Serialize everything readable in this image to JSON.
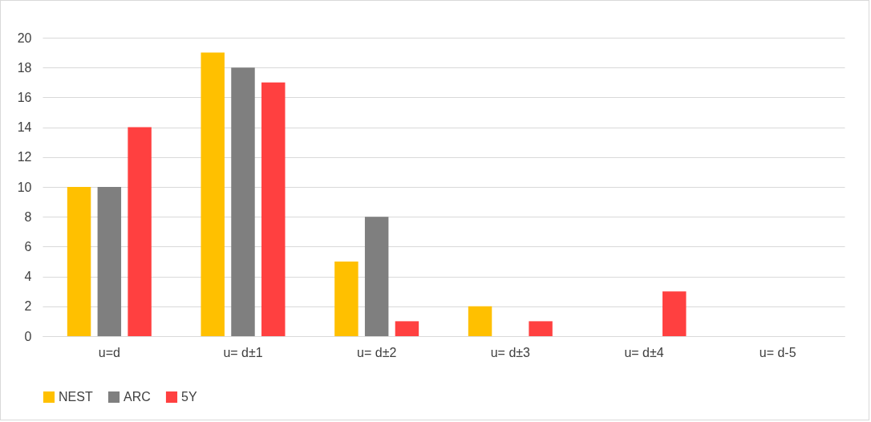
{
  "chart_data": {
    "type": "bar",
    "categories": [
      "u=d",
      "u= d±1",
      "u= d±2",
      "u= d±3",
      "u= d±4",
      "u= d-5"
    ],
    "series": [
      {
        "name": "NEST",
        "color": "#ffc000",
        "values": [
          10,
          19,
          5,
          2,
          0,
          0
        ]
      },
      {
        "name": "ARC",
        "color": "#7f7f7f",
        "values": [
          10,
          18,
          8,
          0,
          0,
          0
        ]
      },
      {
        "name": "5Y",
        "color": "#ff4040",
        "values": [
          14,
          17,
          1,
          1,
          3,
          0
        ]
      }
    ],
    "ylim": [
      0,
      20
    ],
    "yticks": [
      0,
      2,
      4,
      6,
      8,
      10,
      12,
      14,
      16,
      18,
      20
    ],
    "grid": "y",
    "legend": "bottom"
  }
}
